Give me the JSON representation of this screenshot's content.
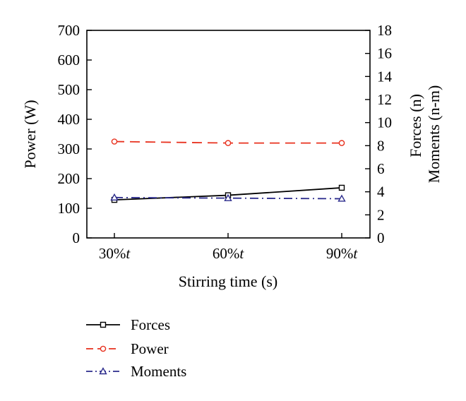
{
  "chart_data": {
    "type": "line",
    "categories": [
      "30%t",
      "60%t",
      "90%t"
    ],
    "category_labels": [
      {
        "base": "30%",
        "italic": "t"
      },
      {
        "base": "60%",
        "italic": "t"
      },
      {
        "base": "90%",
        "italic": "t"
      }
    ],
    "xlabel": "Stirring time (s)",
    "ylabel_left": "Power (W)",
    "ylabel_right": [
      "Forces (n)",
      "Moments (n-m)"
    ],
    "ylim_left": [
      0,
      700
    ],
    "ylim_right": [
      0,
      18
    ],
    "yticks_left": [
      0,
      100,
      200,
      300,
      400,
      500,
      600,
      700
    ],
    "yticks_right": [
      0,
      2,
      4,
      6,
      8,
      10,
      12,
      14,
      16,
      18
    ],
    "grid": false,
    "legend_position": "bottom-left",
    "series": [
      {
        "name": "Forces",
        "axis": "right",
        "values": [
          3.3,
          3.7,
          4.35
        ],
        "color": "#000000",
        "marker": "square",
        "dash": "solid"
      },
      {
        "name": "Power",
        "axis": "left",
        "values": [
          325,
          320,
          320
        ],
        "color": "#e8311e",
        "marker": "circle",
        "dash": "dashed"
      },
      {
        "name": "Moments",
        "axis": "right",
        "values": [
          3.5,
          3.45,
          3.4
        ],
        "color": "#2b2b8c",
        "marker": "triangle",
        "dash": "dashdot"
      }
    ]
  }
}
